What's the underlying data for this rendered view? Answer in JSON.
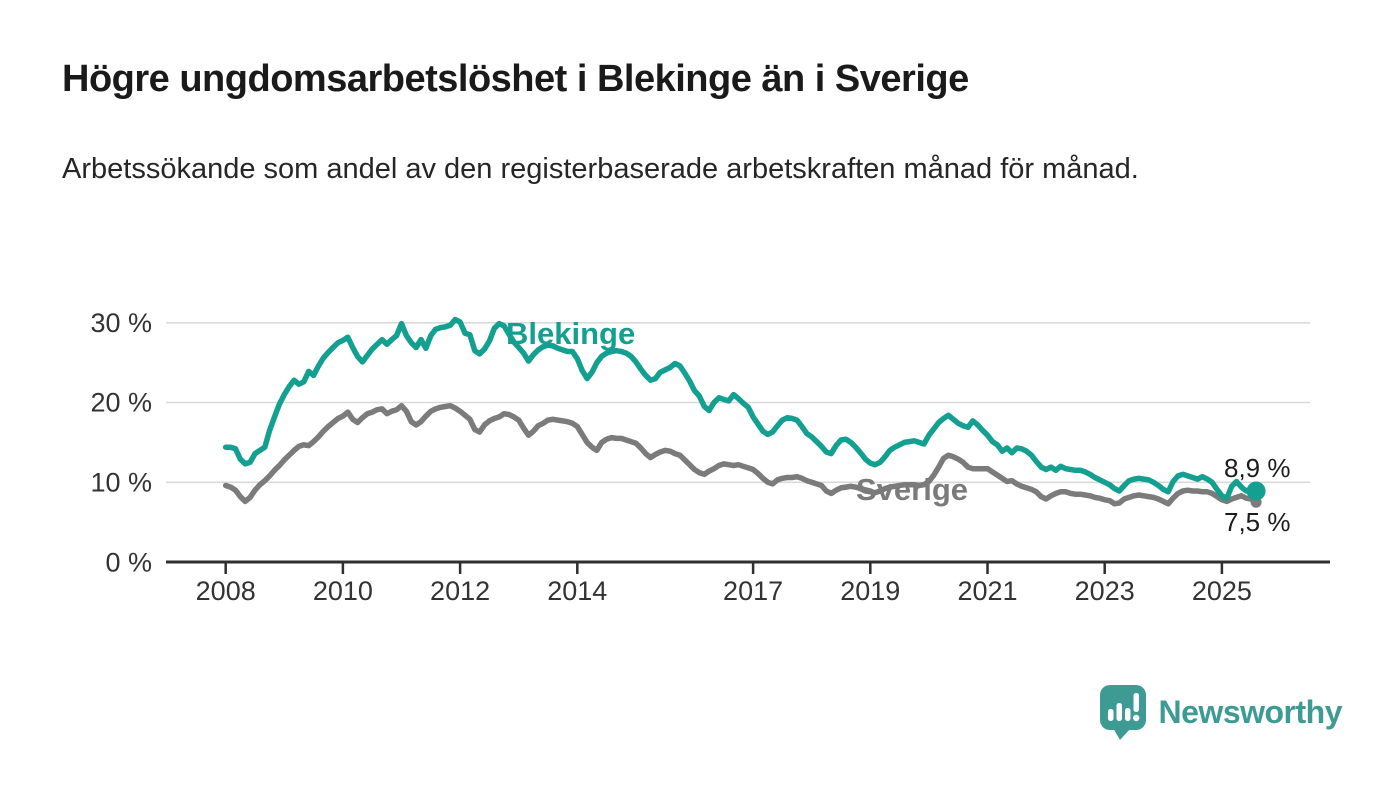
{
  "header": {
    "title": "Högre ungdomsarbetslöshet i Blekinge än i Sverige",
    "subtitle": "Arbetssökande som andel av den registerbaserade arbetskraften månad för månad."
  },
  "palette": {
    "blekinge_teal": "#14a090",
    "sverige_gray": "#7b7b7b",
    "gridline": "#d9d9d9",
    "axis": "#2f2f2f",
    "brand_teal": "#3e9b94"
  },
  "chart_data": {
    "type": "line",
    "unit": "%",
    "grid": "horizontal",
    "x_start_year": 2008,
    "x_step_months": 1,
    "x_axis": {
      "ticks": [
        "2008",
        "2010",
        "2012",
        "2014",
        "2017",
        "2019",
        "2021",
        "2023",
        "2025"
      ]
    },
    "y_axis": {
      "ticks": [
        {
          "value": 0,
          "label": "0 %"
        },
        {
          "value": 10,
          "label": "10 %"
        },
        {
          "value": 20,
          "label": "20 %"
        },
        {
          "value": 30,
          "label": "30 %"
        }
      ],
      "ylim": [
        0,
        31.5
      ]
    },
    "series": [
      {
        "name": "Blekinge",
        "color": "#14a090",
        "end_label": "8,9 %",
        "end_value": 8.9,
        "values": [
          14.4,
          14.4,
          14.2,
          12.9,
          12.3,
          12.5,
          13.6,
          14.0,
          14.4,
          16.5,
          18.2,
          19.8,
          21.0,
          22.0,
          22.8,
          22.3,
          22.6,
          23.9,
          23.4,
          24.6,
          25.6,
          26.3,
          26.9,
          27.5,
          27.8,
          28.2,
          26.9,
          25.8,
          25.1,
          25.9,
          26.7,
          27.3,
          27.9,
          27.3,
          27.9,
          28.4,
          29.9,
          28.4,
          27.5,
          26.9,
          27.9,
          26.8,
          28.4,
          29.2,
          29.4,
          29.5,
          29.7,
          30.4,
          30.1,
          28.7,
          28.5,
          26.5,
          26.1,
          26.7,
          27.7,
          29.3,
          29.9,
          29.6,
          28.6,
          27.6,
          26.9,
          26.2,
          25.2,
          26.0,
          26.6,
          27.0,
          27.2,
          27.1,
          26.8,
          26.6,
          26.4,
          26.4,
          25.5,
          24.0,
          23.0,
          23.8,
          25.0,
          25.8,
          26.2,
          26.4,
          26.5,
          26.4,
          26.2,
          25.8,
          25.1,
          24.2,
          23.4,
          22.8,
          23.0,
          23.8,
          24.1,
          24.4,
          24.9,
          24.6,
          23.7,
          22.7,
          21.5,
          20.8,
          19.5,
          19.0,
          20.0,
          20.6,
          20.4,
          20.2,
          21.0,
          20.5,
          19.9,
          19.4,
          18.2,
          17.3,
          16.4,
          16.0,
          16.3,
          17.1,
          17.8,
          18.1,
          18.0,
          17.8,
          17.0,
          16.1,
          15.7,
          15.1,
          14.5,
          13.8,
          13.6,
          14.6,
          15.3,
          15.4,
          15.0,
          14.4,
          13.7,
          12.9,
          12.4,
          12.2,
          12.5,
          13.2,
          14.0,
          14.4,
          14.7,
          15.0,
          15.1,
          15.2,
          15.0,
          14.8,
          15.9,
          16.7,
          17.5,
          18.0,
          18.4,
          17.9,
          17.4,
          17.1,
          16.9,
          17.7,
          17.2,
          16.5,
          15.9,
          15.1,
          14.7,
          13.9,
          14.3,
          13.7,
          14.3,
          14.2,
          13.9,
          13.4,
          12.6,
          11.9,
          11.6,
          11.9,
          11.5,
          12.0,
          11.7,
          11.6,
          11.5,
          11.5,
          11.3,
          11.0,
          10.6,
          10.3,
          10.0,
          9.7,
          9.2,
          8.9,
          9.6,
          10.2,
          10.4,
          10.5,
          10.4,
          10.3,
          10.0,
          9.6,
          9.1,
          8.8,
          10.1,
          10.8,
          11.0,
          10.8,
          10.6,
          10.4,
          10.7,
          10.4,
          10.0,
          9.1,
          8.3,
          8.0,
          9.5,
          10.1,
          9.4,
          8.9,
          9.1,
          8.9
        ]
      },
      {
        "name": "Sverige",
        "color": "#7b7b7b",
        "end_label": "7,5 %",
        "end_value": 7.5,
        "values": [
          9.6,
          9.4,
          9.0,
          8.2,
          7.6,
          8.1,
          9.0,
          9.7,
          10.2,
          10.8,
          11.5,
          12.1,
          12.8,
          13.4,
          14.0,
          14.5,
          14.7,
          14.6,
          15.1,
          15.7,
          16.4,
          17.0,
          17.5,
          18.0,
          18.3,
          18.8,
          17.9,
          17.5,
          18.1,
          18.6,
          18.8,
          19.1,
          19.2,
          18.6,
          18.9,
          19.1,
          19.6,
          18.9,
          17.6,
          17.2,
          17.6,
          18.3,
          18.9,
          19.2,
          19.4,
          19.5,
          19.6,
          19.3,
          18.9,
          18.4,
          17.9,
          16.6,
          16.3,
          17.2,
          17.7,
          18.0,
          18.2,
          18.6,
          18.5,
          18.2,
          17.8,
          16.8,
          15.9,
          16.4,
          17.1,
          17.4,
          17.8,
          17.9,
          17.8,
          17.7,
          17.6,
          17.4,
          17.0,
          16.0,
          15.0,
          14.4,
          14.0,
          15.0,
          15.4,
          15.6,
          15.5,
          15.5,
          15.3,
          15.1,
          14.9,
          14.3,
          13.6,
          13.1,
          13.5,
          13.8,
          14.0,
          13.9,
          13.6,
          13.4,
          12.8,
          12.2,
          11.6,
          11.2,
          11.0,
          11.4,
          11.7,
          12.1,
          12.3,
          12.2,
          12.1,
          12.2,
          12.0,
          11.8,
          11.6,
          11.1,
          10.5,
          10.0,
          9.8,
          10.3,
          10.5,
          10.6,
          10.6,
          10.7,
          10.5,
          10.2,
          10.0,
          9.8,
          9.6,
          8.9,
          8.6,
          9.0,
          9.3,
          9.4,
          9.5,
          9.4,
          9.2,
          8.9,
          8.8,
          8.7,
          8.9,
          9.2,
          9.4,
          9.5,
          9.6,
          9.7,
          9.7,
          9.7,
          9.6,
          9.7,
          10.1,
          10.9,
          11.9,
          13.0,
          13.4,
          13.2,
          12.9,
          12.5,
          11.9,
          11.7,
          11.7,
          11.7,
          11.7,
          11.3,
          10.9,
          10.5,
          10.1,
          10.2,
          9.8,
          9.5,
          9.3,
          9.1,
          8.8,
          8.2,
          7.9,
          8.3,
          8.6,
          8.8,
          8.8,
          8.6,
          8.5,
          8.5,
          8.4,
          8.3,
          8.1,
          8.0,
          7.8,
          7.7,
          7.3,
          7.4,
          7.9,
          8.1,
          8.3,
          8.4,
          8.3,
          8.2,
          8.1,
          7.9,
          7.6,
          7.3,
          8.0,
          8.6,
          8.9,
          9.0,
          8.9,
          8.9,
          8.8,
          8.8,
          8.6,
          8.2,
          7.8,
          7.6,
          7.9,
          8.1,
          8.3,
          8.0,
          7.9,
          7.5
        ]
      }
    ]
  },
  "footer": {
    "brand": "Newsworthy",
    "brand_color": "#3e9b94",
    "logo_icon": "bar-chart-speech-bubble-icon"
  }
}
